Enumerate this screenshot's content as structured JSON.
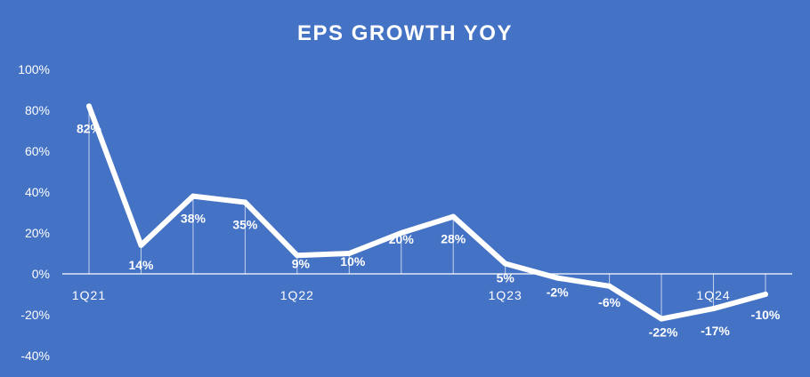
{
  "colors": {
    "background": "#4472c4",
    "line": "#ffffff",
    "text": "#ffffff",
    "axis": "#ffffff",
    "drop_line": "#d9e2f3"
  },
  "chart_data": {
    "type": "line",
    "title": "EPS GROWTH YOY",
    "xlabel": "",
    "ylabel": "",
    "ylim": [
      -40,
      100
    ],
    "y_ticks": [
      "100%",
      "80%",
      "60%",
      "40%",
      "20%",
      "0%",
      "-20%",
      "-40%"
    ],
    "y_tick_values": [
      100,
      80,
      60,
      40,
      20,
      0,
      -20,
      -40
    ],
    "grid": false,
    "legend": "none",
    "x_tick_labels": [
      {
        "label": "1Q21",
        "index": 0
      },
      {
        "label": "1Q22",
        "index": 4
      },
      {
        "label": "1Q23",
        "index": 8
      },
      {
        "label": "1Q24",
        "index": 12
      }
    ],
    "point_count": 14,
    "series": [
      {
        "values": [
          82,
          14,
          38,
          35,
          9,
          10,
          20,
          28,
          5,
          -2,
          -6,
          -22,
          -17,
          -10
        ],
        "labels": [
          "82%",
          "14%",
          "38%",
          "35%",
          "9%",
          "10%",
          "20%",
          "28%",
          "5%",
          "-2%",
          "-6%",
          "-22%",
          "-17%",
          "-10%"
        ]
      }
    ]
  }
}
